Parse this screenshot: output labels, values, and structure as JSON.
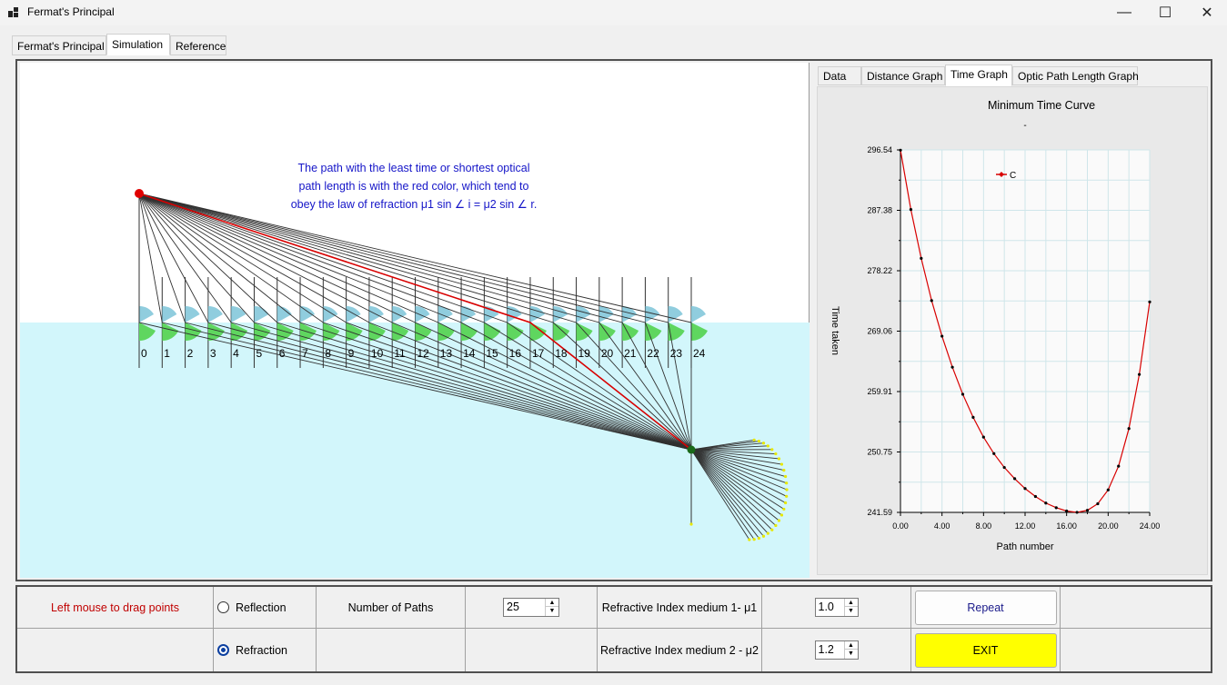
{
  "window": {
    "title": "Fermat's Principal",
    "controls": [
      "—",
      "☐",
      "✕"
    ]
  },
  "main_tabs": [
    "Fermat's Principal",
    "Simulation",
    "Reference"
  ],
  "active_main_tab": "Simulation",
  "simulation": {
    "message_lines": [
      "The path with the least time or shortest optical",
      "path length is with the red color, which tend to",
      "obey  the  law  of  refraction  μ1  sin ∠ i  =  μ2  sin ∠ r."
    ],
    "path_labels": [
      "0",
      "1",
      "2",
      "3",
      "4",
      "5",
      "6",
      "7",
      "8",
      "9",
      "10",
      "11",
      "12",
      "13",
      "14",
      "15",
      "16",
      "17",
      "18",
      "19",
      "20",
      "21",
      "22",
      "23",
      "24"
    ],
    "least_time_path": "17",
    "colors": {
      "path": "#303030",
      "least_path": "#d80000",
      "water": "#d2f6fb",
      "angle_incident": "#7dc4d8",
      "angle_refracted": "#5fd65f",
      "message": "#1515c8"
    }
  },
  "graph_tabs": [
    "Data",
    "Distance Graph",
    "Time Graph",
    "Optic Path Length Graph"
  ],
  "active_graph_tab": "Time Graph",
  "chart_data": {
    "type": "line",
    "title": "Minimum Time Curve",
    "subtitle": "-",
    "xlabel": "Path number",
    "ylabel": "Time taken",
    "xticks": [
      "0.00",
      "4.00",
      "8.00",
      "12.00",
      "16.00",
      "20.00",
      "24.00"
    ],
    "yticks": [
      "241.59",
      "250.75",
      "259.91",
      "269.06",
      "278.22",
      "287.38",
      "296.54"
    ],
    "xlim": [
      0,
      24
    ],
    "ylim": [
      241.59,
      296.54
    ],
    "grid": true,
    "legend_position": "top-left",
    "series": [
      {
        "name": "C",
        "color": "#d80000",
        "x": [
          0,
          1,
          2,
          3,
          4,
          5,
          6,
          7,
          8,
          9,
          10,
          11,
          12,
          13,
          14,
          15,
          16,
          17,
          18,
          19,
          20,
          21,
          22,
          23,
          24
        ],
        "y": [
          296.5,
          287.5,
          280.1,
          273.7,
          268.3,
          263.6,
          259.5,
          256.0,
          253.0,
          250.5,
          248.4,
          246.7,
          245.2,
          244.0,
          243.0,
          242.3,
          241.8,
          241.6,
          241.9,
          242.9,
          245.0,
          248.6,
          254.3,
          262.5,
          273.5
        ]
      }
    ]
  },
  "controls": {
    "drag_hint": "Left mouse to drag points",
    "reflection_label": "Reflection",
    "refraction_label": "Refraction",
    "selected_mode": "Refraction",
    "num_paths_label": "Number of Paths",
    "num_paths_value": "25",
    "mu1_label": "Refractive Index medium 1- μ1",
    "mu1_value": "1.0",
    "mu2_label": "Refractive Index medium 2 - μ2",
    "mu2_value": "1.2",
    "repeat_label": "Repeat",
    "exit_label": "EXIT"
  }
}
